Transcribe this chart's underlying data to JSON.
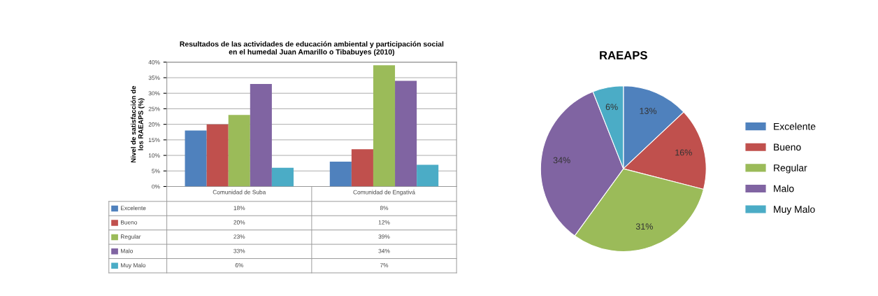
{
  "chart_data": [
    {
      "type": "bar",
      "title": "Resultados de las actividades de educación ambiental y participación social\nen el humedal Juan Amarillo o Tibabuyes (2010)",
      "ylabel": "Nivel de satisfacción de\nlos RAEAPS (%)",
      "categories": [
        "Comunidad de Suba",
        "Comunidad de Engativá"
      ],
      "series": [
        {
          "name": "Excelente",
          "color": "#4f81bd",
          "values": [
            18,
            8
          ],
          "value_labels": [
            "18%",
            "8%"
          ]
        },
        {
          "name": "Bueno",
          "color": "#c0504d",
          "values": [
            20,
            12
          ],
          "value_labels": [
            "20%",
            "12%"
          ]
        },
        {
          "name": "Regular",
          "color": "#9bbb59",
          "values": [
            23,
            39
          ],
          "value_labels": [
            "23%",
            "39%"
          ]
        },
        {
          "name": "Malo",
          "color": "#8064a2",
          "values": [
            33,
            34
          ],
          "value_labels": [
            "33%",
            "34%"
          ]
        },
        {
          "name": "Muy Malo",
          "color": "#4bacc6",
          "values": [
            6,
            7
          ],
          "value_labels": [
            "6%",
            "7%"
          ]
        }
      ],
      "ylim": [
        0,
        40
      ],
      "yticks": [
        {
          "value": 0,
          "label": "0%"
        },
        {
          "value": 5,
          "label": "5%"
        },
        {
          "value": 10,
          "label": "10%"
        },
        {
          "value": 15,
          "label": "15%"
        },
        {
          "value": 20,
          "label": "20%"
        },
        {
          "value": 25,
          "label": "25%"
        },
        {
          "value": 30,
          "label": "30%"
        },
        {
          "value": 35,
          "label": "35%"
        },
        {
          "value": 40,
          "label": "40%"
        }
      ],
      "grid": "y",
      "legend": "bottom"
    },
    {
      "type": "pie",
      "title": "RAEAPS",
      "categories": [
        "Excelente",
        "Bueno",
        "Regular",
        "Malo",
        "Muy Malo"
      ],
      "values": [
        13,
        16,
        31,
        34,
        6
      ],
      "colors": [
        "#4f81bd",
        "#c0504d",
        "#9bbb59",
        "#8064a2",
        "#4bacc6"
      ],
      "value_labels": [
        "13%",
        "16%",
        "31%",
        "34%",
        "6%"
      ],
      "legend": "right"
    }
  ]
}
